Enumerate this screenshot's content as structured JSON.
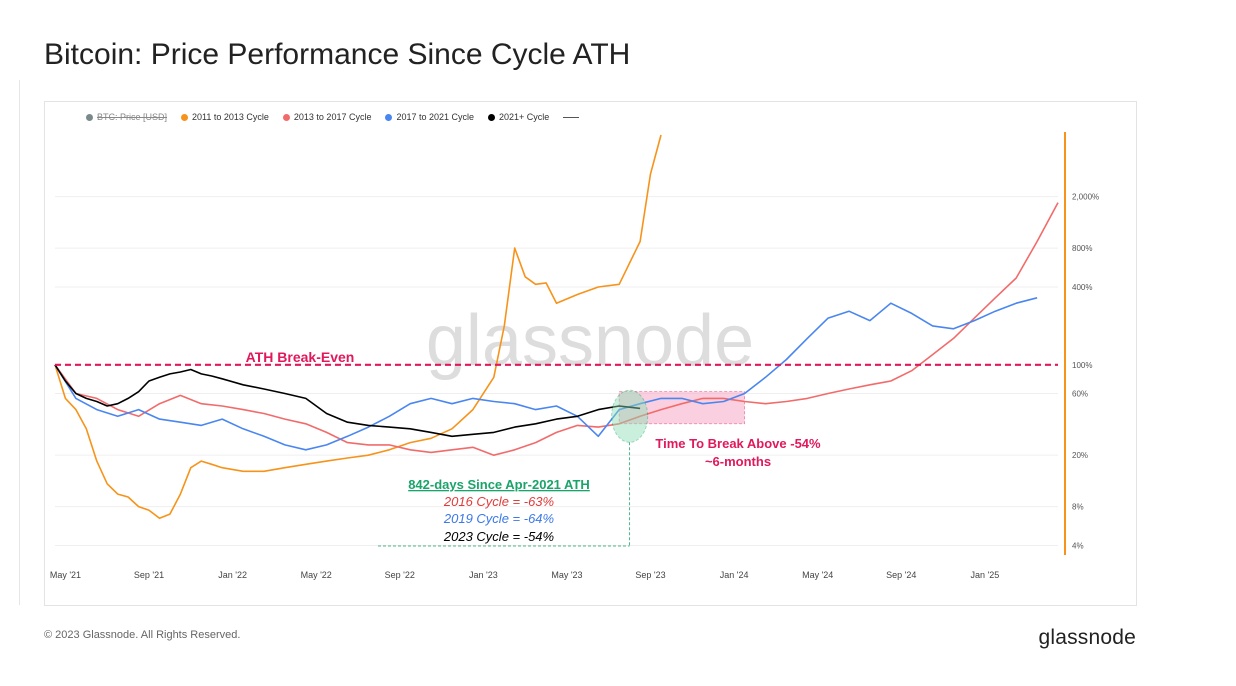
{
  "page": {
    "title": "Bitcoin: Price Performance Since Cycle ATH",
    "copyright": "© 2023 Glassnode. All Rights Reserved.",
    "brand": "glassnode",
    "watermark": "glassnode"
  },
  "legend": {
    "items": [
      {
        "label": "BTC: Price [USD]",
        "color": "#7a8a8a",
        "disabled": true
      },
      {
        "label": "2011 to 2013 Cycle",
        "color": "#f7931a"
      },
      {
        "label": "2013 to 2017 Cycle",
        "color": "#f26b6b"
      },
      {
        "label": "2017 to 2021 Cycle",
        "color": "#4a86f0"
      },
      {
        "label": "2021+ Cycle",
        "color": "#000000"
      }
    ]
  },
  "annotations": {
    "ath_label": "ATH Break-Even",
    "break_above_line1": "Time To Break Above -54%",
    "break_above_line2": "~6-months",
    "days_since": "842-days Since Apr-2021 ATH",
    "cycle_2016": "2016 Cycle = -63%",
    "cycle_2019": "2019 Cycle = -64%",
    "cycle_2023": "2023 Cycle = -54%"
  },
  "colors": {
    "accent_pink": "#e0185c",
    "green": "#1aa46a",
    "orange": "#f7931a",
    "red_series": "#f26b6b",
    "blue_series": "#4a86f0",
    "black_series": "#000000"
  },
  "chart_data": {
    "type": "line",
    "title": "Bitcoin: Price Performance Since Cycle ATH",
    "y_scale": "log",
    "y_ticks": [
      "4%",
      "8%",
      "20%",
      "60%",
      "100%",
      "400%",
      "800%",
      "2,000%"
    ],
    "y_tick_values": [
      4,
      8,
      20,
      60,
      100,
      400,
      800,
      2000
    ],
    "x_ticks": [
      "May '21",
      "Sep '21",
      "Jan '22",
      "May '22",
      "Sep '22",
      "Jan '23",
      "May '23",
      "Sep '23",
      "Jan '24",
      "May '24",
      "Sep '24",
      "Jan '25"
    ],
    "x_tick_values": [
      0.5,
      4.5,
      8.5,
      12.5,
      16.5,
      20.5,
      24.5,
      28.5,
      32.5,
      36.5,
      40.5,
      44.5
    ],
    "xlim": [
      0,
      48
    ],
    "ylim": [
      3.5,
      6000
    ],
    "x_unit": "months since Apr-2021 ATH",
    "grid": true,
    "legend_position": "top-left",
    "series": [
      {
        "name": "2011 to 2013 Cycle",
        "color": "#f7931a",
        "x": [
          0,
          0.5,
          1,
          1.5,
          2,
          2.5,
          3,
          3.5,
          4,
          4.5,
          5,
          5.5,
          6,
          6.5,
          7,
          7.5,
          8,
          9,
          10,
          11,
          12,
          13,
          14,
          15,
          16,
          17,
          18,
          19,
          20,
          21,
          21.5,
          22,
          22.5,
          23,
          23.5,
          24,
          25,
          26,
          27,
          28,
          28.5,
          29
        ],
        "y": [
          100,
          55,
          45,
          32,
          18,
          12,
          10,
          9.5,
          8,
          7.5,
          6.5,
          7,
          10,
          16,
          18,
          17,
          16,
          15,
          15,
          16,
          17,
          18,
          19,
          20,
          22,
          25,
          27,
          32,
          45,
          80,
          200,
          800,
          480,
          420,
          430,
          300,
          350,
          400,
          420,
          900,
          3000,
          6000
        ]
      },
      {
        "name": "2013 to 2017 Cycle",
        "color": "#f26b6b",
        "x": [
          0,
          1,
          2,
          3,
          4,
          5,
          6,
          7,
          8,
          9,
          10,
          11,
          12,
          13,
          14,
          15,
          16,
          17,
          18,
          19,
          20,
          21,
          22,
          23,
          24,
          25,
          26,
          27,
          28,
          29,
          30,
          31,
          32,
          33,
          34,
          35,
          36,
          37,
          38,
          39,
          40,
          41,
          42,
          43,
          44,
          45,
          46,
          47,
          48
        ],
        "y": [
          100,
          60,
          55,
          45,
          40,
          50,
          58,
          50,
          48,
          45,
          42,
          38,
          35,
          30,
          25,
          24,
          24,
          22,
          21,
          22,
          23,
          20,
          22,
          25,
          30,
          34,
          33,
          35,
          40,
          45,
          50,
          55,
          55,
          52,
          50,
          52,
          55,
          60,
          65,
          70,
          75,
          90,
          120,
          160,
          230,
          330,
          470,
          900,
          1800
        ]
      },
      {
        "name": "2017 to 2021 Cycle",
        "color": "#4a86f0",
        "x": [
          0,
          1,
          2,
          3,
          4,
          5,
          6,
          7,
          8,
          9,
          10,
          11,
          12,
          13,
          14,
          15,
          16,
          17,
          18,
          19,
          20,
          21,
          22,
          23,
          24,
          25,
          26,
          27,
          28,
          29,
          30,
          31,
          32,
          33,
          34,
          35,
          36,
          37,
          38,
          39,
          40,
          41,
          42,
          43,
          44,
          45,
          46,
          47
        ],
        "y": [
          100,
          55,
          45,
          40,
          45,
          38,
          36,
          34,
          38,
          32,
          28,
          24,
          22,
          24,
          28,
          33,
          40,
          50,
          55,
          50,
          55,
          52,
          50,
          45,
          48,
          40,
          28,
          45,
          50,
          55,
          55,
          50,
          52,
          60,
          80,
          110,
          160,
          230,
          260,
          220,
          300,
          250,
          200,
          190,
          220,
          260,
          300,
          330
        ]
      },
      {
        "name": "2021+ Cycle",
        "color": "#000000",
        "x": [
          0,
          0.5,
          1,
          1.5,
          2,
          2.5,
          3,
          3.5,
          4,
          4.5,
          5,
          5.5,
          6,
          6.5,
          7,
          7.5,
          8,
          9,
          10,
          11,
          12,
          13,
          14,
          15,
          16,
          17,
          18,
          19,
          20,
          21,
          22,
          23,
          24,
          25,
          26,
          27,
          28
        ],
        "y": [
          100,
          75,
          60,
          55,
          52,
          48,
          50,
          55,
          62,
          75,
          80,
          85,
          88,
          92,
          85,
          82,
          78,
          70,
          65,
          60,
          55,
          42,
          36,
          34,
          33,
          32,
          30,
          28,
          29,
          30,
          33,
          35,
          38,
          40,
          45,
          48,
          46
        ]
      }
    ],
    "reference_line": {
      "y": 100,
      "label": "ATH Break-Even"
    },
    "highlight_zone": {
      "x_start": 27,
      "x_end": 33,
      "y_low": 35,
      "y_high": 62,
      "label": "Time To Break Above -54%"
    },
    "highlight_circle": {
      "x": 27.5,
      "y": 40
    }
  }
}
